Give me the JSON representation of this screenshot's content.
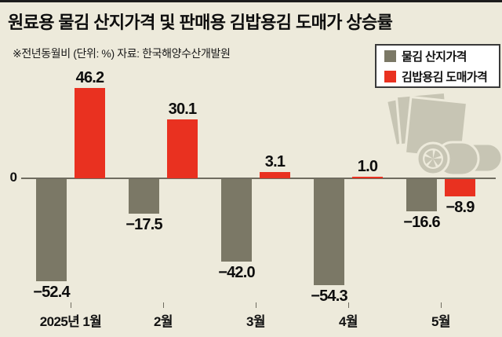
{
  "colors": {
    "background": "#edeadb",
    "top_border": "#1c1c1c",
    "series_gray": "#7b7866",
    "series_red": "#e93120",
    "axis_line": "#6f6c60",
    "legend_bg": "#ffffff",
    "legend_border": "#3a3a3a",
    "illustration": "#c7c5b4"
  },
  "header": {
    "title": "원료용 물김 산지가격 및 판매용 김밥용김 도매가 상승률",
    "note": "※전년동월비 (단위: %) 자료: 한국해양수산개발원"
  },
  "axis": {
    "zero_label": "0"
  },
  "chart_data": {
    "type": "bar",
    "title": "원료용 물김 산지가격 및 판매용 김밥용김 도매가 상승률",
    "subtitle": "※전년동월비 (단위: %) 자료: 한국해양수산개발원",
    "unit": "%",
    "comparison": "전년동월비",
    "source": "한국해양수산개발원",
    "categories": [
      "2025년 1월",
      "2월",
      "3월",
      "4월",
      "5월"
    ],
    "series": [
      {
        "name": "물김 산지가격",
        "color_key": "series_gray",
        "values": [
          -52.4,
          -17.5,
          -42.0,
          -54.3,
          -16.6
        ],
        "labels": [
          "−52.4",
          "−17.5",
          "−42.0",
          "−54.3",
          "−16.6"
        ]
      },
      {
        "name": "김밥용김 도매가격",
        "color_key": "series_red",
        "values": [
          46.2,
          30.1,
          3.1,
          1.0,
          -8.9
        ],
        "labels": [
          "46.2",
          "30.1",
          "3.1",
          "1.0",
          "−8.9"
        ]
      }
    ],
    "ylim": [
      -60,
      50
    ],
    "baseline": 0,
    "grid": false,
    "legend_position": "top-right"
  }
}
